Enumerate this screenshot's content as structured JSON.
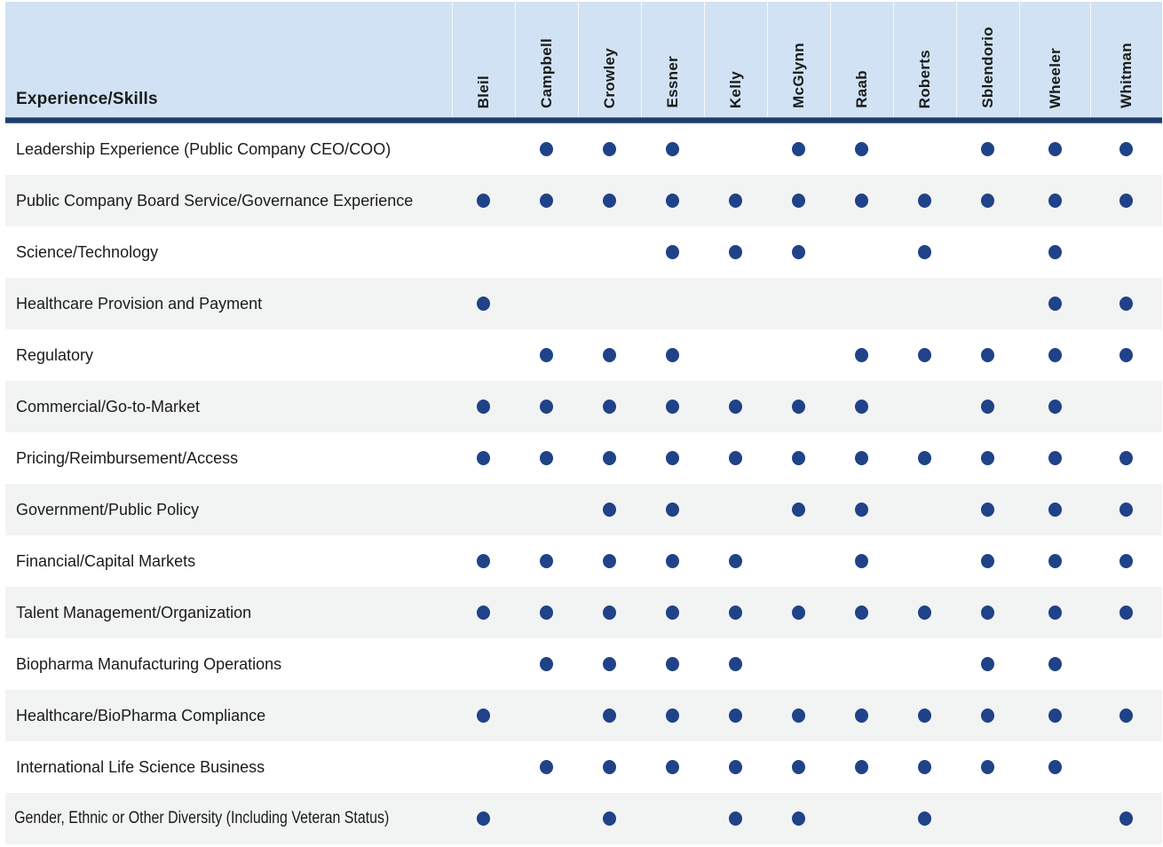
{
  "header": {
    "corner_label": "Experience/Skills",
    "columns": [
      "Bleil",
      "Campbell",
      "Crowley",
      "Essner",
      "Kelly",
      "McGlynn",
      "Raab",
      "Roberts",
      "Sblendorio",
      "Wheeler",
      "Whitman"
    ]
  },
  "rows": [
    {
      "label": "Leadership Experience (Public Company CEO/COO)",
      "marks": [
        0,
        1,
        1,
        1,
        0,
        1,
        1,
        0,
        1,
        1,
        1
      ]
    },
    {
      "label": "Public Company Board Service/Governance Experience",
      "marks": [
        1,
        1,
        1,
        1,
        1,
        1,
        1,
        1,
        1,
        1,
        1
      ]
    },
    {
      "label": "Science/Technology",
      "marks": [
        0,
        0,
        0,
        1,
        1,
        1,
        0,
        1,
        0,
        1,
        0
      ]
    },
    {
      "label": "Healthcare Provision and Payment",
      "marks": [
        1,
        0,
        0,
        0,
        0,
        0,
        0,
        0,
        0,
        1,
        1
      ]
    },
    {
      "label": "Regulatory",
      "marks": [
        0,
        1,
        1,
        1,
        0,
        0,
        1,
        1,
        1,
        1,
        1
      ]
    },
    {
      "label": "Commercial/Go-to-Market",
      "marks": [
        1,
        1,
        1,
        1,
        1,
        1,
        1,
        0,
        1,
        1,
        0
      ]
    },
    {
      "label": "Pricing/Reimbursement/Access",
      "marks": [
        1,
        1,
        1,
        1,
        1,
        1,
        1,
        1,
        1,
        1,
        1
      ]
    },
    {
      "label": "Government/Public Policy",
      "marks": [
        0,
        0,
        1,
        1,
        0,
        1,
        1,
        0,
        1,
        1,
        1
      ]
    },
    {
      "label": "Financial/Capital Markets",
      "marks": [
        1,
        1,
        1,
        1,
        1,
        0,
        1,
        0,
        1,
        1,
        1
      ]
    },
    {
      "label": "Talent Management/Organization",
      "marks": [
        1,
        1,
        1,
        1,
        1,
        1,
        1,
        1,
        1,
        1,
        1
      ]
    },
    {
      "label": "Biopharma Manufacturing Operations",
      "marks": [
        0,
        1,
        1,
        1,
        1,
        0,
        0,
        0,
        1,
        1,
        0
      ]
    },
    {
      "label": "Healthcare/BioPharma Compliance",
      "marks": [
        1,
        0,
        1,
        1,
        1,
        1,
        1,
        1,
        1,
        1,
        1
      ]
    },
    {
      "label": "International Life Science Business",
      "marks": [
        0,
        1,
        1,
        1,
        1,
        1,
        1,
        1,
        1,
        1,
        0
      ]
    },
    {
      "label": "Gender, Ethnic or Other Diversity (Including Veteran Status)",
      "marks": [
        1,
        0,
        1,
        0,
        1,
        1,
        0,
        1,
        0,
        0,
        1
      ]
    }
  ],
  "colors": {
    "header_background": "#d0e2f3",
    "header_divider_bar": "#223d6b",
    "dot": "#1f4288",
    "row_stripe": "#f2f3f3",
    "text": "#1b1b1b"
  }
}
